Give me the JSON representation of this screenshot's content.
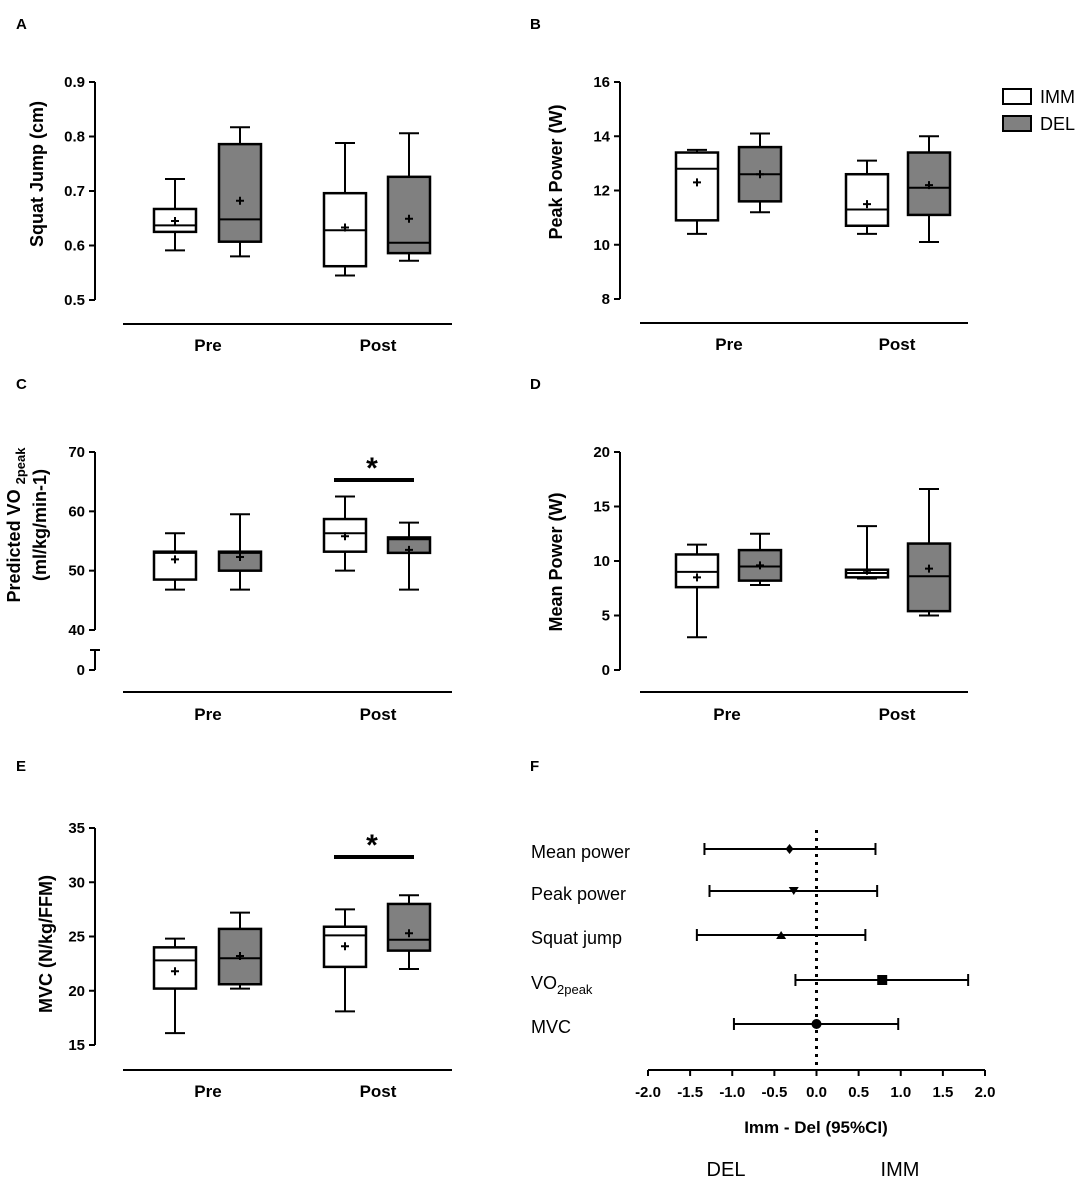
{
  "legend": {
    "imm": "IMM",
    "del": "DEL",
    "imm_color": "#ffffff",
    "del_color": "#808080"
  },
  "chart_data": [
    {
      "panel": "A",
      "type": "box",
      "ylabel": "Squat Jump (cm)",
      "categories": [
        "Pre",
        "Post"
      ],
      "ylim": [
        0.5,
        0.9
      ],
      "yticks": [
        "0.5",
        "0.6",
        "0.7",
        "0.8",
        "0.9"
      ],
      "boxes": [
        {
          "group": "Pre",
          "series": "IMM",
          "min": 0.591,
          "q1": 0.625,
          "median": 0.637,
          "q3": 0.667,
          "max": 0.722,
          "mean": 0.645
        },
        {
          "group": "Pre",
          "series": "DEL",
          "min": 0.58,
          "q1": 0.607,
          "median": 0.648,
          "q3": 0.786,
          "max": 0.817,
          "mean": 0.682
        },
        {
          "group": "Post",
          "series": "IMM",
          "min": 0.545,
          "q1": 0.562,
          "median": 0.628,
          "q3": 0.696,
          "max": 0.788,
          "mean": 0.633
        },
        {
          "group": "Post",
          "series": "DEL",
          "min": 0.572,
          "q1": 0.586,
          "median": 0.605,
          "q3": 0.726,
          "max": 0.806,
          "mean": 0.649
        }
      ]
    },
    {
      "panel": "B",
      "type": "box",
      "ylabel": "Peak Power (W)",
      "categories": [
        "Pre",
        "Post"
      ],
      "ylim": [
        8,
        16
      ],
      "yticks": [
        "8",
        "10",
        "12",
        "14",
        "16"
      ],
      "boxes": [
        {
          "group": "Pre",
          "series": "IMM",
          "min": 10.4,
          "q1": 10.9,
          "median": 12.8,
          "q3": 13.4,
          "max": 13.5,
          "mean": 12.3
        },
        {
          "group": "Pre",
          "series": "DEL",
          "min": 11.2,
          "q1": 11.6,
          "median": 12.6,
          "q3": 13.6,
          "max": 14.1,
          "mean": 12.6
        },
        {
          "group": "Post",
          "series": "IMM",
          "min": 10.4,
          "q1": 10.7,
          "median": 11.3,
          "q3": 12.6,
          "max": 13.1,
          "mean": 11.5
        },
        {
          "group": "Post",
          "series": "DEL",
          "min": 10.1,
          "q1": 11.1,
          "median": 12.1,
          "q3": 13.4,
          "max": 14.0,
          "mean": 12.2
        }
      ]
    },
    {
      "panel": "C",
      "type": "box",
      "ylabel_lines": [
        "Predicted VO2peak",
        "(ml/kg/min-1)"
      ],
      "categories": [
        "Pre",
        "Post"
      ],
      "ylim": [
        40,
        70
      ],
      "axis_break": true,
      "yticks": [
        "0",
        "40",
        "50",
        "60",
        "70"
      ],
      "significance": "*",
      "boxes": [
        {
          "group": "Pre",
          "series": "IMM",
          "min": 46.8,
          "q1": 48.5,
          "median": 53.0,
          "q3": 53.2,
          "max": 56.3,
          "mean": 51.9
        },
        {
          "group": "Pre",
          "series": "DEL",
          "min": 46.8,
          "q1": 50.0,
          "median": 53.0,
          "q3": 53.2,
          "max": 59.5,
          "mean": 52.3
        },
        {
          "group": "Post",
          "series": "IMM",
          "min": 50.0,
          "q1": 53.2,
          "median": 56.3,
          "q3": 58.7,
          "max": 62.5,
          "mean": 55.8
        },
        {
          "group": "Post",
          "series": "DEL",
          "min": 46.8,
          "q1": 53.0,
          "median": 55.3,
          "q3": 55.6,
          "max": 58.1,
          "mean": 53.5
        }
      ]
    },
    {
      "panel": "D",
      "type": "box",
      "ylabel": "Mean Power (W)",
      "categories": [
        "Pre",
        "Post"
      ],
      "ylim": [
        0,
        20
      ],
      "yticks": [
        "0",
        "5",
        "10",
        "15",
        "20"
      ],
      "boxes": [
        {
          "group": "Pre",
          "series": "IMM",
          "min": 3.0,
          "q1": 7.6,
          "median": 9.0,
          "q3": 10.6,
          "max": 11.5,
          "mean": 8.5
        },
        {
          "group": "Pre",
          "series": "DEL",
          "min": 7.8,
          "q1": 8.2,
          "median": 9.5,
          "q3": 11.0,
          "max": 12.5,
          "mean": 9.6
        },
        {
          "group": "Post",
          "series": "IMM",
          "min": 8.4,
          "q1": 8.5,
          "median": 8.9,
          "q3": 9.2,
          "max": 13.2,
          "mean": 9.1
        },
        {
          "group": "Post",
          "series": "DEL",
          "min": 5.0,
          "q1": 5.4,
          "median": 8.6,
          "q3": 11.6,
          "max": 16.6,
          "mean": 9.3
        }
      ]
    },
    {
      "panel": "E",
      "type": "box",
      "ylabel": "MVC (N/kg/FFM)",
      "categories": [
        "Pre",
        "Post"
      ],
      "ylim": [
        15,
        35
      ],
      "yticks": [
        "15",
        "20",
        "25",
        "30",
        "35"
      ],
      "significance": "*",
      "boxes": [
        {
          "group": "Pre",
          "series": "IMM",
          "min": 16.1,
          "q1": 20.2,
          "median": 22.8,
          "q3": 24.0,
          "max": 24.8,
          "mean": 21.8
        },
        {
          "group": "Pre",
          "series": "DEL",
          "min": 20.2,
          "q1": 20.6,
          "median": 23.0,
          "q3": 25.7,
          "max": 27.2,
          "mean": 23.2
        },
        {
          "group": "Post",
          "series": "IMM",
          "min": 18.1,
          "q1": 22.2,
          "median": 25.1,
          "q3": 25.9,
          "max": 27.5,
          "mean": 24.1
        },
        {
          "group": "Post",
          "series": "DEL",
          "min": 22.0,
          "q1": 23.7,
          "median": 24.7,
          "q3": 28.0,
          "max": 28.8,
          "mean": 25.3
        }
      ]
    },
    {
      "panel": "F",
      "type": "forest",
      "xlabel": "Imm - Del (95%CI)",
      "xlim": [
        -2.0,
        2.0
      ],
      "xticks": [
        "-2.0",
        "-1.5",
        "-1.0",
        "-0.5",
        "0.0",
        "0.5",
        "1.0",
        "1.5",
        "2.0"
      ],
      "left_label": "DEL",
      "right_label": "IMM",
      "rows": [
        {
          "label": "Mean power",
          "marker": "diamond",
          "estimate": -0.32,
          "lower": -1.33,
          "upper": 0.7
        },
        {
          "label": "Peak power",
          "marker": "triangle-down",
          "estimate": -0.27,
          "lower": -1.27,
          "upper": 0.72
        },
        {
          "label": "Squat jump",
          "marker": "triangle-up",
          "estimate": -0.42,
          "lower": -1.42,
          "upper": 0.58
        },
        {
          "label": "VO2peak",
          "label_main": "VO",
          "label_sub": "2peak",
          "marker": "square",
          "estimate": 0.78,
          "lower": -0.25,
          "upper": 1.8
        },
        {
          "label": "MVC",
          "marker": "circle",
          "estimate": 0.0,
          "lower": -0.98,
          "upper": 0.97
        }
      ]
    }
  ]
}
